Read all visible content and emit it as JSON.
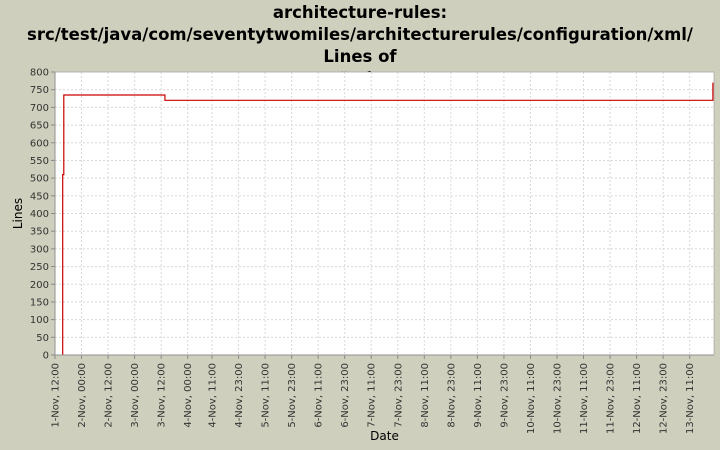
{
  "chart_data": {
    "type": "line",
    "title_lines": [
      "architecture-rules:",
      "src/test/java/com/seventytwomiles/architecturerules/configuration/xml/ Lines of",
      "Code"
    ],
    "xlabel": "Date",
    "ylabel": "Lines",
    "ylim": [
      0,
      800
    ],
    "yticks": [
      0,
      50,
      100,
      150,
      200,
      250,
      300,
      350,
      400,
      450,
      500,
      550,
      600,
      650,
      700,
      750,
      800
    ],
    "xlim_hours": [
      0,
      298
    ],
    "xticks": [
      {
        "label": "1-Nov, 12:00",
        "h": 0
      },
      {
        "label": "2-Nov, 00:00",
        "h": 12
      },
      {
        "label": "2-Nov, 12:00",
        "h": 24
      },
      {
        "label": "3-Nov, 00:00",
        "h": 36
      },
      {
        "label": "3-Nov, 12:00",
        "h": 48
      },
      {
        "label": "4-Nov, 00:00",
        "h": 60
      },
      {
        "label": "4-Nov, 11:00",
        "h": 71
      },
      {
        "label": "4-Nov, 23:00",
        "h": 83
      },
      {
        "label": "5-Nov, 11:00",
        "h": 95
      },
      {
        "label": "5-Nov, 23:00",
        "h": 107
      },
      {
        "label": "6-Nov, 11:00",
        "h": 119
      },
      {
        "label": "6-Nov, 23:00",
        "h": 131
      },
      {
        "label": "7-Nov, 11:00",
        "h": 143
      },
      {
        "label": "7-Nov, 23:00",
        "h": 155
      },
      {
        "label": "8-Nov, 11:00",
        "h": 167
      },
      {
        "label": "8-Nov, 23:00",
        "h": 179
      },
      {
        "label": "9-Nov, 11:00",
        "h": 191
      },
      {
        "label": "9-Nov, 23:00",
        "h": 203
      },
      {
        "label": "10-Nov, 11:00",
        "h": 215
      },
      {
        "label": "10-Nov, 23:00",
        "h": 227
      },
      {
        "label": "11-Nov, 11:00",
        "h": 239
      },
      {
        "label": "11-Nov, 23:00",
        "h": 251
      },
      {
        "label": "12-Nov, 11:00",
        "h": 263
      },
      {
        "label": "12-Nov, 23:00",
        "h": 275
      },
      {
        "label": "13-Nov, 11:00",
        "h": 287
      }
    ],
    "series": [
      {
        "color": "#cc0000",
        "step": true,
        "points": [
          {
            "h": 3.5,
            "y": 0
          },
          {
            "h": 3.5,
            "y": 510
          },
          {
            "h": 4.0,
            "y": 510
          },
          {
            "h": 4.0,
            "y": 735
          },
          {
            "h": 49.7,
            "y": 735
          },
          {
            "h": 49.7,
            "y": 720
          },
          {
            "h": 297.5,
            "y": 720
          },
          {
            "h": 297.5,
            "y": 770
          }
        ]
      }
    ],
    "grid": true,
    "plot_background": "#ffffff",
    "grid_color": "#d8d8d8"
  }
}
